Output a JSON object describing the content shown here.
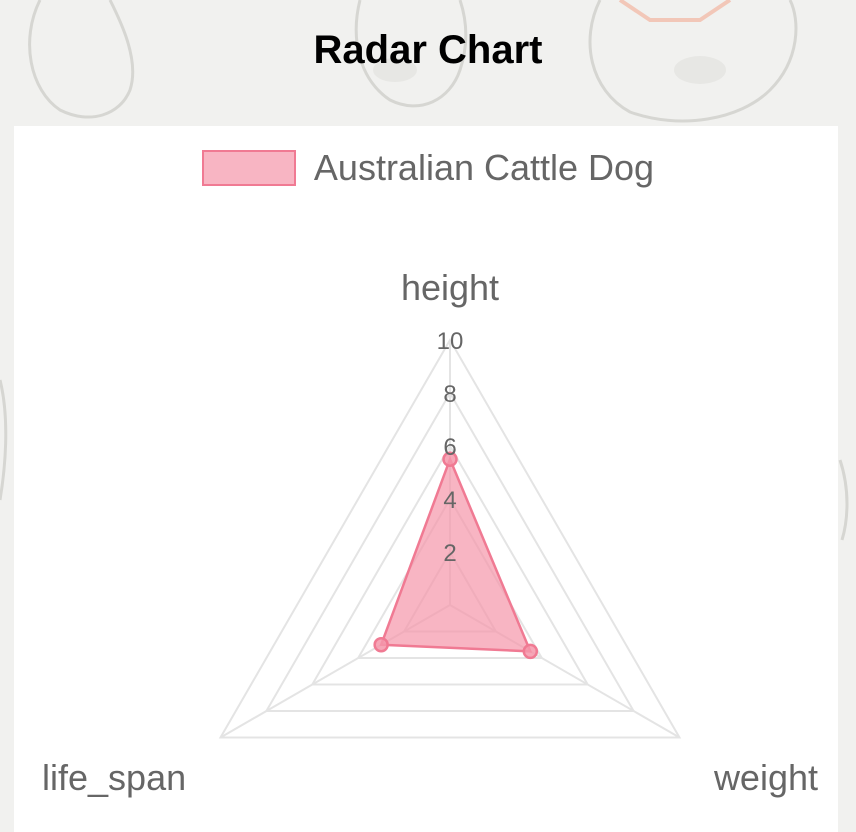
{
  "page": {
    "title": "Radar Chart"
  },
  "chart_data": {
    "type": "radar",
    "axes": [
      "height",
      "weight",
      "life_span"
    ],
    "ticks": [
      "2",
      "4",
      "6",
      "8",
      "10"
    ],
    "range": [
      0,
      10
    ],
    "grid": true,
    "legend_position": "top",
    "series": [
      {
        "name": "Australian Cattle Dog",
        "values": [
          5.5,
          3.5,
          3.0
        ],
        "color": "#f07a93"
      }
    ]
  }
}
